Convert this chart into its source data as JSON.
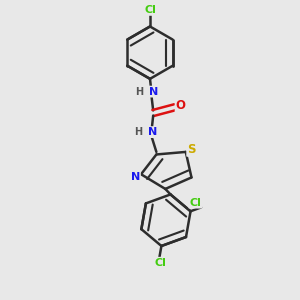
{
  "background_color": "#e8e8e8",
  "bond_color": "#2d2d2d",
  "bond_width": 1.8,
  "dbo": 0.012,
  "atom_colors": {
    "N": "#1a1aee",
    "O": "#dd1111",
    "S": "#ccaa00",
    "Cl": "#44cc11"
  },
  "fs": 8.0,
  "fs_small": 7.5,
  "fig_size": [
    3.0,
    3.0
  ],
  "dpi": 100
}
